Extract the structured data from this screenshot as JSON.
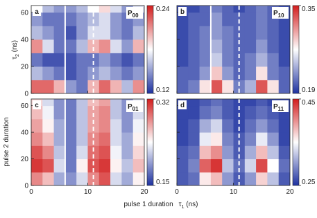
{
  "shared": {
    "ylabel": "pulse 2 duration",
    "ysymbol": "τ",
    "ysub": "2",
    "yunit": " (ns)",
    "xlabel": "pulse 1 duration",
    "xsymbol": "τ",
    "xsub": "1",
    "xunit": " (ns)"
  },
  "chart_data": [
    {
      "type": "heatmap",
      "panel": "a",
      "title": "P",
      "title_sub": "00",
      "xlim": [
        0,
        20
      ],
      "ylim": [
        0,
        65
      ],
      "yticks": [
        0,
        20,
        40,
        60
      ],
      "x_edges": [
        0,
        2,
        4,
        6,
        8,
        10,
        12,
        14,
        16,
        18,
        20
      ],
      "y_edges": [
        0,
        10,
        20,
        30,
        40,
        50,
        60,
        65
      ],
      "clim": [
        0.12,
        0.24
      ],
      "cticks": [
        0.12,
        0.24
      ],
      "vlines": [
        {
          "x": 6,
          "style": "solid"
        },
        {
          "x": 11,
          "style": "dashed"
        }
      ],
      "z": [
        [
          0.22,
          0.22,
          0.2,
          0.15,
          0.14,
          0.2,
          0.22,
          0.2,
          0.16,
          0.21
        ],
        [
          0.16,
          0.15,
          0.14,
          0.13,
          0.14,
          0.15,
          0.16,
          0.15,
          0.14,
          0.15
        ],
        [
          0.14,
          0.13,
          0.13,
          0.13,
          0.14,
          0.14,
          0.15,
          0.14,
          0.13,
          0.14
        ],
        [
          0.21,
          0.17,
          0.14,
          0.14,
          0.16,
          0.2,
          0.21,
          0.17,
          0.15,
          0.2
        ],
        [
          0.16,
          0.15,
          0.14,
          0.13,
          0.15,
          0.17,
          0.17,
          0.15,
          0.14,
          0.16
        ],
        [
          0.15,
          0.14,
          0.14,
          0.14,
          0.15,
          0.16,
          0.17,
          0.15,
          0.14,
          0.15
        ],
        [
          0.18,
          0.16,
          0.15,
          0.15,
          0.16,
          0.18,
          0.19,
          0.17,
          0.15,
          0.17
        ]
      ]
    },
    {
      "type": "heatmap",
      "panel": "b",
      "title": "P",
      "title_sub": "10",
      "xlim": [
        0,
        20
      ],
      "ylim": [
        0,
        65
      ],
      "x_edges": [
        0,
        2,
        4,
        6,
        8,
        10,
        12,
        14,
        16,
        18,
        20
      ],
      "y_edges": [
        0,
        10,
        20,
        30,
        40,
        50,
        60,
        65
      ],
      "clim": [
        0.19,
        0.35
      ],
      "cticks": [
        0.19,
        0.35
      ],
      "vlines": [
        {
          "x": 6,
          "style": "solid"
        },
        {
          "x": 11,
          "style": "dashed"
        }
      ],
      "z": [
        [
          0.21,
          0.22,
          0.28,
          0.33,
          0.28,
          0.22,
          0.24,
          0.33,
          0.28,
          0.21
        ],
        [
          0.21,
          0.21,
          0.23,
          0.29,
          0.23,
          0.21,
          0.22,
          0.28,
          0.22,
          0.21
        ],
        [
          0.2,
          0.21,
          0.22,
          0.25,
          0.22,
          0.21,
          0.22,
          0.24,
          0.22,
          0.2
        ],
        [
          0.2,
          0.21,
          0.22,
          0.24,
          0.22,
          0.21,
          0.21,
          0.23,
          0.21,
          0.2
        ],
        [
          0.2,
          0.21,
          0.22,
          0.23,
          0.22,
          0.21,
          0.21,
          0.22,
          0.21,
          0.2
        ],
        [
          0.2,
          0.21,
          0.21,
          0.23,
          0.21,
          0.21,
          0.21,
          0.22,
          0.21,
          0.2
        ],
        [
          0.2,
          0.2,
          0.21,
          0.22,
          0.21,
          0.2,
          0.21,
          0.22,
          0.21,
          0.2
        ]
      ]
    },
    {
      "type": "heatmap",
      "panel": "c",
      "title": "P",
      "title_sub": "01",
      "xlim": [
        0,
        20
      ],
      "ylim": [
        0,
        65
      ],
      "xticks": [
        0,
        10,
        20
      ],
      "yticks": [
        0,
        20,
        40,
        60
      ],
      "x_edges": [
        0,
        2,
        4,
        6,
        8,
        10,
        12,
        14,
        16,
        18,
        20
      ],
      "y_edges": [
        0,
        10,
        20,
        30,
        40,
        50,
        60,
        65
      ],
      "clim": [
        0.15,
        0.32
      ],
      "cticks": [
        0.15,
        0.32
      ],
      "vlines": [
        {
          "x": 6,
          "style": "solid"
        },
        {
          "x": 11,
          "style": "dashed"
        }
      ],
      "z": [
        [
          0.28,
          0.26,
          0.2,
          0.19,
          0.22,
          0.28,
          0.3,
          0.22,
          0.2,
          0.24
        ],
        [
          0.31,
          0.3,
          0.22,
          0.18,
          0.24,
          0.3,
          0.31,
          0.24,
          0.21,
          0.26
        ],
        [
          0.3,
          0.28,
          0.21,
          0.18,
          0.22,
          0.29,
          0.3,
          0.23,
          0.2,
          0.25
        ],
        [
          0.28,
          0.26,
          0.2,
          0.18,
          0.21,
          0.28,
          0.29,
          0.22,
          0.2,
          0.24
        ],
        [
          0.27,
          0.24,
          0.2,
          0.18,
          0.21,
          0.27,
          0.28,
          0.22,
          0.19,
          0.23
        ],
        [
          0.26,
          0.23,
          0.19,
          0.18,
          0.21,
          0.27,
          0.28,
          0.21,
          0.19,
          0.22
        ],
        [
          0.25,
          0.22,
          0.19,
          0.18,
          0.21,
          0.26,
          0.27,
          0.21,
          0.19,
          0.22
        ]
      ]
    },
    {
      "type": "heatmap",
      "panel": "d",
      "title": "P",
      "title_sub": "11",
      "xlim": [
        0,
        20
      ],
      "ylim": [
        0,
        65
      ],
      "xticks": [
        0,
        10,
        20
      ],
      "x_edges": [
        0,
        2,
        4,
        6,
        8,
        10,
        12,
        14,
        16,
        18,
        20
      ],
      "y_edges": [
        0,
        10,
        20,
        30,
        40,
        50,
        60,
        65
      ],
      "clim": [
        0.25,
        0.45
      ],
      "cticks": [
        0.25,
        0.45
      ],
      "vlines": [
        {
          "x": 11,
          "style": "dashed"
        }
      ],
      "z": [
        [
          0.27,
          0.28,
          0.36,
          0.38,
          0.3,
          0.27,
          0.3,
          0.37,
          0.32,
          0.27
        ],
        [
          0.27,
          0.29,
          0.42,
          0.44,
          0.32,
          0.28,
          0.33,
          0.43,
          0.35,
          0.28
        ],
        [
          0.27,
          0.28,
          0.38,
          0.4,
          0.3,
          0.27,
          0.31,
          0.38,
          0.32,
          0.27
        ],
        [
          0.26,
          0.27,
          0.34,
          0.36,
          0.29,
          0.27,
          0.29,
          0.34,
          0.3,
          0.26
        ],
        [
          0.26,
          0.27,
          0.31,
          0.33,
          0.28,
          0.26,
          0.28,
          0.3,
          0.28,
          0.26
        ],
        [
          0.26,
          0.26,
          0.28,
          0.29,
          0.27,
          0.26,
          0.27,
          0.28,
          0.27,
          0.26
        ],
        [
          0.26,
          0.26,
          0.27,
          0.28,
          0.27,
          0.26,
          0.26,
          0.27,
          0.26,
          0.26
        ]
      ]
    }
  ]
}
